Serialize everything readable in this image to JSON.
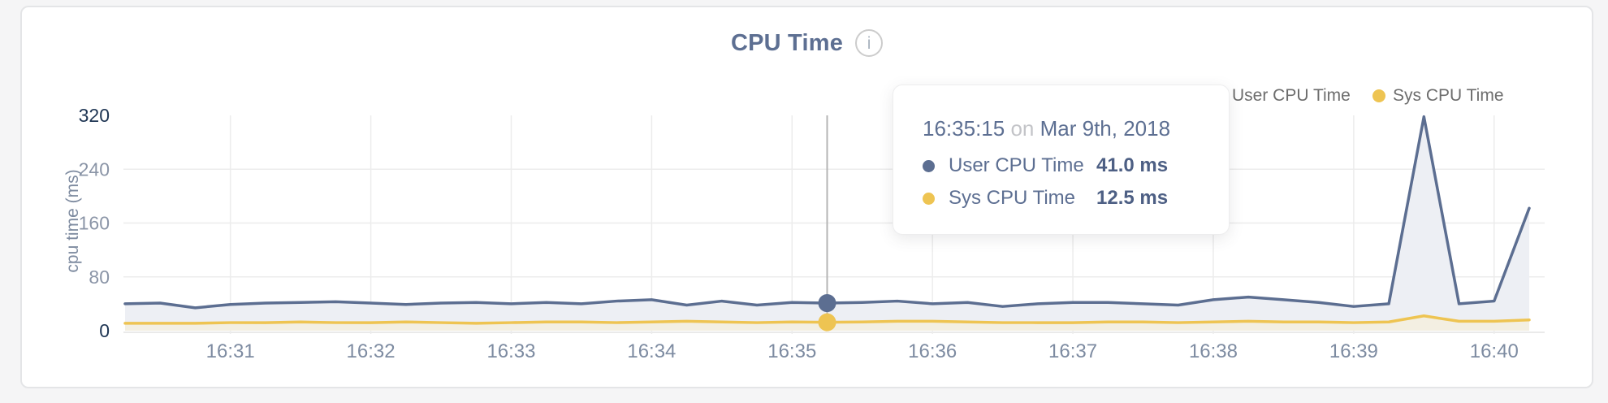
{
  "page": {
    "background": "#f5f5f6"
  },
  "card": {
    "title": "CPU Time",
    "info_glyph": "i"
  },
  "legend": [
    {
      "label": "User CPU Time",
      "color": "#5c6e91"
    },
    {
      "label": "Sys CPU Time",
      "color": "#eec452"
    }
  ],
  "tooltip": {
    "time": "16:35:15",
    "conjunction": "on",
    "date": "Mar 9th, 2018",
    "rows": [
      {
        "label": "User CPU Time",
        "value": "41.0 ms",
        "color": "#5c6e91"
      },
      {
        "label": "Sys CPU Time",
        "value": "12.5 ms",
        "color": "#eec452"
      }
    ]
  },
  "chart_data": {
    "type": "area",
    "title": "CPU Time",
    "ylabel": "cpu time (ms)",
    "ylim": [
      0,
      320
    ],
    "yticks": [
      0,
      80,
      160,
      240,
      320
    ],
    "xticks": [
      "16:31",
      "16:32",
      "16:33",
      "16:34",
      "16:35",
      "16:36",
      "16:37",
      "16:38",
      "16:39",
      "16:40"
    ],
    "x": [
      "16:30:15",
      "16:30:30",
      "16:30:45",
      "16:31:00",
      "16:31:15",
      "16:31:30",
      "16:31:45",
      "16:32:00",
      "16:32:15",
      "16:32:30",
      "16:32:45",
      "16:33:00",
      "16:33:15",
      "16:33:30",
      "16:33:45",
      "16:34:00",
      "16:34:15",
      "16:34:30",
      "16:34:45",
      "16:35:00",
      "16:35:15",
      "16:35:30",
      "16:35:45",
      "16:36:00",
      "16:36:15",
      "16:36:30",
      "16:36:45",
      "16:37:00",
      "16:37:15",
      "16:37:30",
      "16:37:45",
      "16:38:00",
      "16:38:15",
      "16:38:30",
      "16:38:45",
      "16:39:00",
      "16:39:15",
      "16:39:30",
      "16:39:45",
      "16:40:00",
      "16:40:15"
    ],
    "series": [
      {
        "name": "User CPU Time",
        "color": "#5c6e91",
        "fill": "#edeff4",
        "values": [
          40,
          41,
          34,
          39,
          41,
          42,
          43,
          41,
          39,
          41,
          42,
          40,
          42,
          40,
          44,
          46,
          38,
          44,
          38,
          42,
          41,
          42,
          44,
          40,
          42,
          36,
          40,
          42,
          42,
          40,
          38,
          46,
          50,
          46,
          42,
          36,
          40,
          318,
          40,
          44,
          182
        ]
      },
      {
        "name": "Sys CPU Time",
        "color": "#eec452",
        "fill": "#f3efe2",
        "values": [
          11,
          11,
          11,
          12,
          12,
          13,
          12,
          12,
          13,
          12,
          11,
          12,
          13,
          13,
          12,
          13,
          14,
          13,
          12,
          13,
          12.5,
          13,
          14,
          14,
          13,
          12,
          12,
          12,
          13,
          13,
          12,
          13,
          14,
          13,
          13,
          12,
          13,
          22,
          14,
          14,
          16
        ]
      }
    ],
    "hover_index": 20,
    "grid": true,
    "legend_position": "top-right",
    "grid_color": "#ececec",
    "axis_line_color": "#e3e3e4",
    "crosshair_color": "#b5b5b5",
    "ytick_strong_color": "#1e3553",
    "ytick_weak_color": "#8b95a7",
    "xtick_color": "#7d8ba1"
  }
}
